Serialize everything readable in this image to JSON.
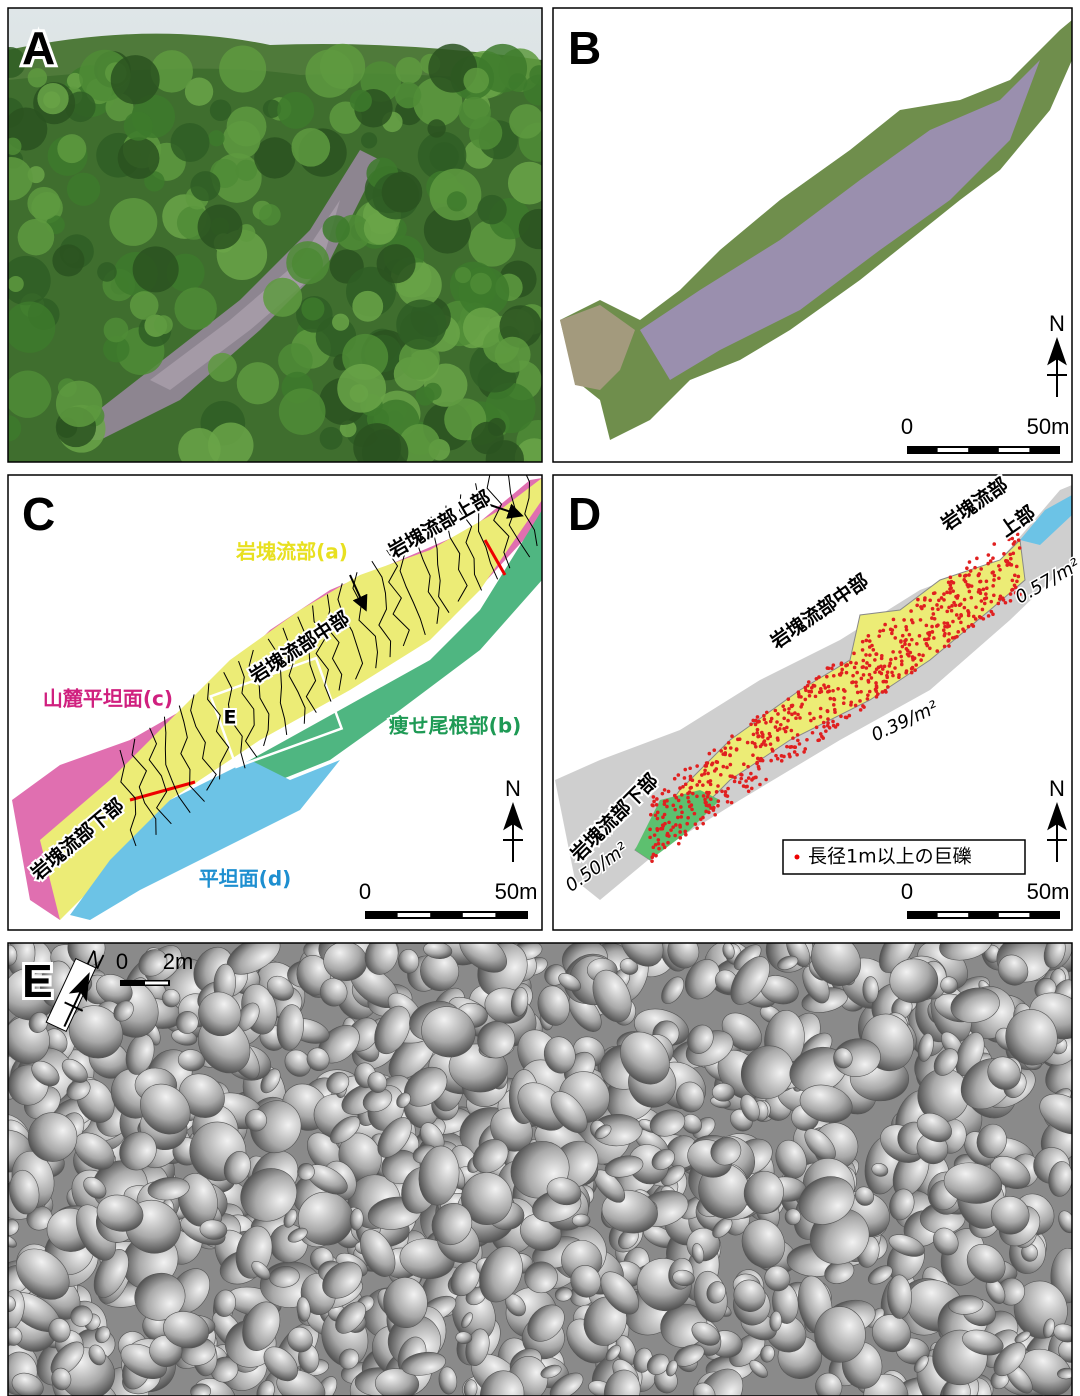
{
  "panels": [
    {
      "label": "A"
    },
    {
      "label": "B",
      "north": "N",
      "scale_labels": [
        "0",
        "50m"
      ]
    },
    {
      "label": "C",
      "north": "N",
      "scale_labels": [
        "0",
        "50m"
      ],
      "zones": [
        "岩塊流部(a)",
        "痩せ尾根部(b)",
        "山麓平坦面(c)",
        "平坦面(d)"
      ],
      "sections": [
        "岩塊流部上部",
        "岩塊流部中部",
        "岩塊流部下部"
      ],
      "inset_label": "E"
    },
    {
      "label": "D",
      "north": "N",
      "scale_labels": [
        "0",
        "50m"
      ],
      "sections": [
        "岩塊流部",
        "上部",
        "岩塊流部中部",
        "岩塊流部下部"
      ],
      "densities": [
        "0.57/m²",
        "0.39/m²",
        "0.50/m²"
      ],
      "legend": "長径1m以上の巨礫"
    },
    {
      "label": "E",
      "north": "N",
      "scale_labels": [
        "0",
        "2m"
      ]
    }
  ]
}
